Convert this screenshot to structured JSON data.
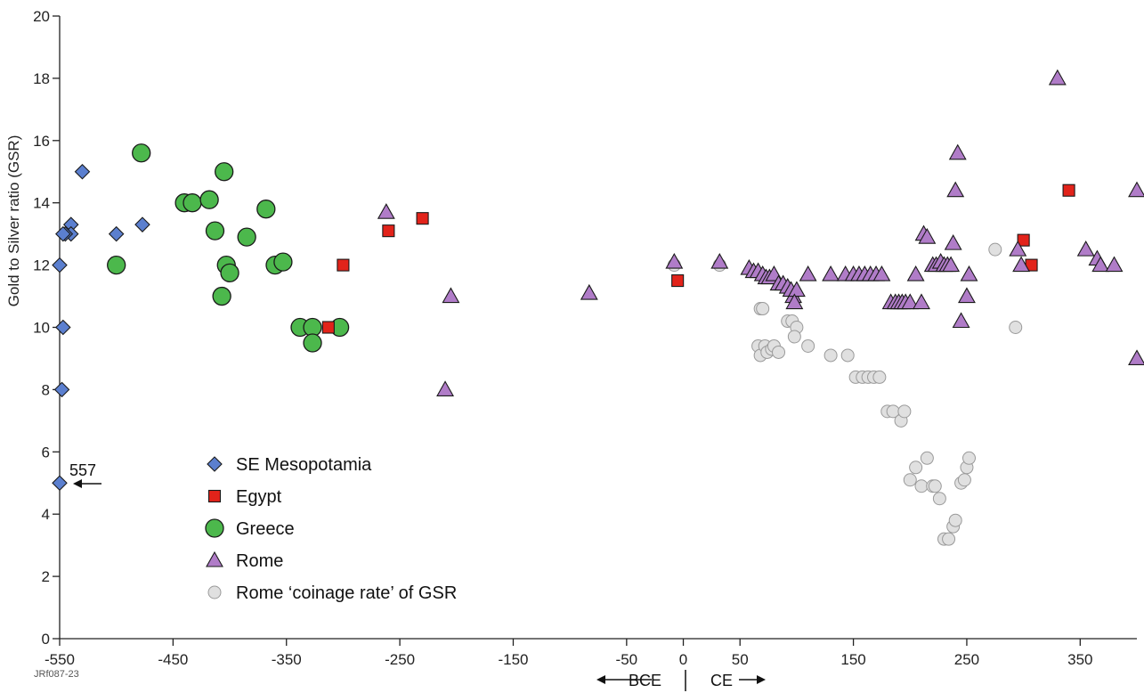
{
  "chart_data": {
    "type": "scatter",
    "title": "",
    "xlabel": "",
    "ylabel": "Gold to Silver ratio (GSR)",
    "xlim": [
      -550,
      400
    ],
    "ylim": [
      0,
      20
    ],
    "x_ticks": [
      -550,
      -450,
      -350,
      -250,
      -150,
      -50,
      0,
      50,
      150,
      250,
      350
    ],
    "x_tick_labels": [
      "-550",
      "-450",
      "-350",
      "-250",
      "-150",
      "-50",
      "0",
      "50",
      "150",
      "250",
      "350"
    ],
    "y_ticks": [
      0,
      2,
      4,
      6,
      8,
      10,
      12,
      14,
      16,
      18,
      20
    ],
    "y_tick_labels": [
      "0",
      "2",
      "4",
      "6",
      "8",
      "10",
      "12",
      "14",
      "16",
      "18",
      "20"
    ],
    "era_left_label": "BCE",
    "era_right_label": "CE",
    "figure_code": "JRf087-23",
    "annotation": {
      "text": "557",
      "x": -550,
      "y": 5
    },
    "legend_placement": "lower-left",
    "series": [
      {
        "name": "SE Mesopotamia",
        "marker": "diamond",
        "color": "#5b7fcf",
        "x": [
          -530,
          -540,
          -540,
          -545,
          -547,
          -550,
          -547,
          -548,
          -500,
          -477,
          -550
        ],
        "y": [
          15,
          13.3,
          13,
          13,
          13,
          12,
          10,
          8,
          13,
          13.3,
          5
        ]
      },
      {
        "name": "Egypt",
        "marker": "square",
        "color": "#e2231a",
        "x": [
          -313,
          -300,
          -260,
          -230,
          -5,
          300,
          307,
          340
        ],
        "y": [
          10,
          12,
          13.1,
          13.5,
          11.5,
          12.8,
          12,
          14.4
        ]
      },
      {
        "name": "Greece",
        "marker": "circle",
        "color": "#4cb84c",
        "x": [
          -478,
          -500,
          -440,
          -433,
          -418,
          -413,
          -405,
          -403,
          -400,
          -407,
          -385,
          -368,
          -360,
          -353,
          -338,
          -327,
          -327,
          -303
        ],
        "y": [
          15.6,
          12,
          14,
          14,
          14.1,
          13.1,
          15,
          12,
          11.75,
          11,
          12.9,
          13.8,
          12,
          12.1,
          10,
          10,
          9.5,
          10
        ]
      },
      {
        "name": "Rome",
        "marker": "triangle",
        "color": "#b07cc8",
        "x": [
          -262,
          -210,
          -205,
          -83,
          -8,
          32,
          58,
          62,
          66,
          70,
          73,
          76,
          80,
          84,
          88,
          92,
          95,
          97,
          100,
          98,
          110,
          130,
          143,
          150,
          155,
          160,
          165,
          170,
          175,
          183,
          187,
          190,
          193,
          196,
          200,
          205,
          210,
          212,
          215,
          220,
          223,
          227,
          230,
          233,
          236,
          238,
          240,
          242,
          245,
          250,
          252,
          295,
          298,
          330,
          355,
          365,
          368,
          380,
          400,
          400
        ],
        "y": [
          13.7,
          8,
          11,
          11.1,
          12.1,
          12.1,
          11.9,
          11.8,
          11.8,
          11.7,
          11.6,
          11.6,
          11.7,
          11.4,
          11.4,
          11.3,
          11.2,
          11,
          11.2,
          10.8,
          11.7,
          11.7,
          11.7,
          11.7,
          11.7,
          11.7,
          11.7,
          11.7,
          11.7,
          10.8,
          10.8,
          10.8,
          10.8,
          10.8,
          10.8,
          11.7,
          10.8,
          13,
          12.9,
          12,
          12,
          12.1,
          12,
          12,
          12,
          12.7,
          14.4,
          15.6,
          10.2,
          11,
          11.7,
          12.5,
          12,
          18,
          12.5,
          12.2,
          12,
          12,
          14.4,
          9
        ]
      },
      {
        "name": "Rome ‘coinage rate’ of GSR",
        "marker": "circle-small",
        "color": "#e0e0e0",
        "x": [
          -8,
          32,
          68,
          70,
          66,
          68,
          72,
          74,
          78,
          80,
          84,
          92,
          96,
          100,
          98,
          110,
          130,
          145,
          152,
          158,
          163,
          168,
          173,
          180,
          185,
          192,
          195,
          200,
          205,
          210,
          215,
          220,
          222,
          226,
          230,
          234,
          238,
          240,
          245,
          248,
          250,
          252,
          275,
          293
        ],
        "y": [
          12,
          12,
          10.6,
          10.6,
          9.4,
          9.1,
          9.4,
          9.2,
          9.3,
          9.4,
          9.2,
          10.2,
          10.2,
          10,
          9.7,
          9.4,
          9.1,
          9.1,
          8.4,
          8.4,
          8.4,
          8.4,
          8.4,
          7.3,
          7.3,
          7,
          7.3,
          5.1,
          5.5,
          4.9,
          5.8,
          4.9,
          4.9,
          4.5,
          3.2,
          3.2,
          3.6,
          3.8,
          5,
          5.1,
          5.5,
          5.8,
          12.5,
          10
        ]
      }
    ]
  }
}
